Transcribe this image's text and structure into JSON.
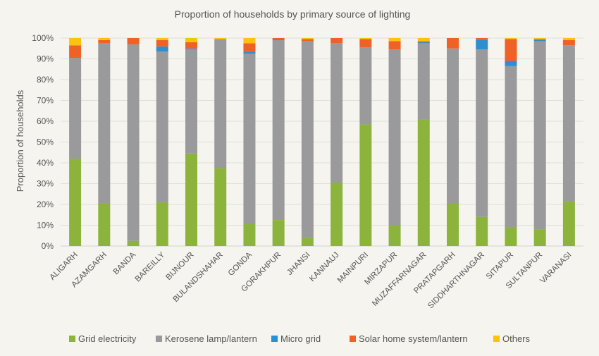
{
  "chart_data": {
    "type": "bar",
    "stacked": true,
    "title": "Proportion of households by primary source of lighting",
    "xlabel": "",
    "ylabel": "Proportion of households",
    "ylim": [
      0,
      100
    ],
    "y_ticks": [
      "0%",
      "10%",
      "20%",
      "30%",
      "40%",
      "50%",
      "60%",
      "70%",
      "80%",
      "90%",
      "100%"
    ],
    "grid": true,
    "legend_position": "bottom",
    "categories": [
      "ALIGARH",
      "AZAMGARH",
      "BANDA",
      "BAREILLY",
      "BIJNOUR",
      "BULANDSHAHAR",
      "GONDA",
      "GORAKHPUR",
      "JHANSI",
      "KANNAUJ",
      "MAINPURI",
      "MIRZAPUR",
      "MUZAFFARNAGAR",
      "PRATAPGARH",
      "SIDDHARTHNAGAR",
      "SITAPUR",
      "SULTANPUR",
      "VARANASI"
    ],
    "series": [
      {
        "name": "Grid electricity",
        "color": "#8cb43c",
        "values": [
          42,
          20.5,
          2.5,
          21,
          44.5,
          37.5,
          10.5,
          12.5,
          4,
          30.5,
          58.5,
          10,
          61,
          20.5,
          14,
          9,
          8,
          21.5
        ]
      },
      {
        "name": "Kerosene lamp/lantern",
        "color": "#9a999b",
        "values": [
          48.5,
          77,
          94.5,
          72.5,
          50,
          62,
          82,
          86.5,
          94.5,
          67,
          37,
          84.5,
          36.5,
          74.5,
          80.5,
          77.5,
          90.5,
          75
        ]
      },
      {
        "name": "Micro grid",
        "color": "#2b8fd0",
        "values": [
          0,
          0,
          0,
          2.5,
          0.5,
          0,
          1,
          0.5,
          0,
          0,
          0,
          0,
          0.5,
          0,
          4.5,
          2.5,
          0.5,
          0
        ]
      },
      {
        "name": "Solar home system/lantern",
        "color": "#ef6125",
        "values": [
          6,
          1.5,
          3,
          3,
          3,
          0,
          4,
          0.5,
          1,
          2.5,
          4,
          4,
          0.5,
          5,
          1,
          10.5,
          0.5,
          2.5
        ]
      },
      {
        "name": "Others",
        "color": "#fcc20d",
        "values": [
          3.5,
          1,
          0,
          1,
          2,
          0.5,
          2.5,
          0,
          0.5,
          0,
          0.5,
          1.5,
          1.5,
          0,
          0,
          0.5,
          0.5,
          1
        ]
      }
    ]
  }
}
